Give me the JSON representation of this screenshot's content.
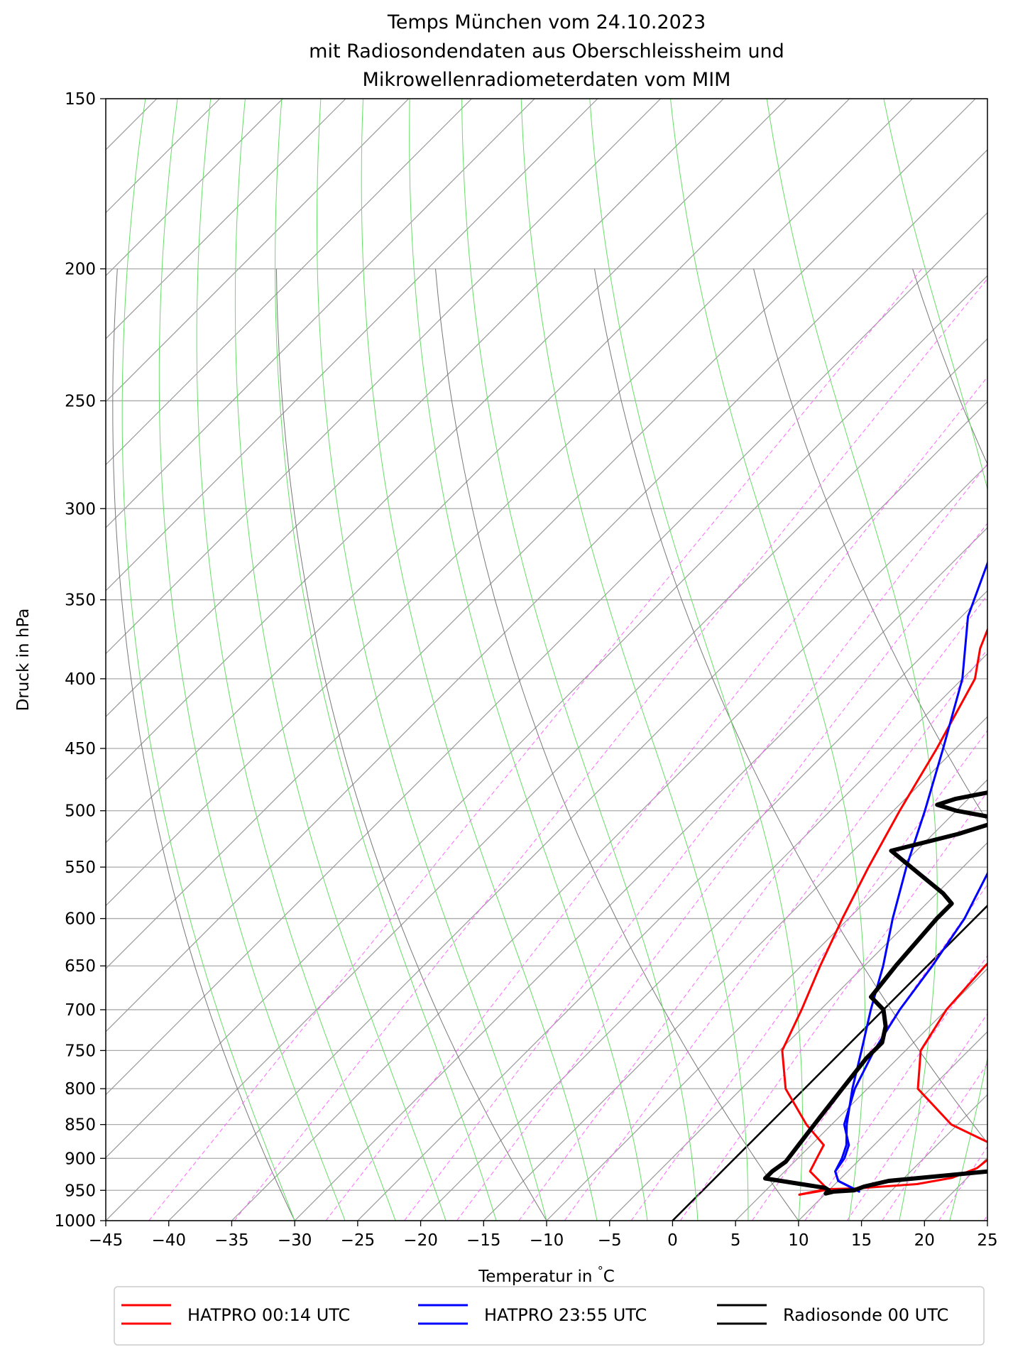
{
  "chart_data": {
    "type": "line",
    "title": [
      "Temps München vom 24.10.2023",
      "mit Radiosondendaten aus Oberschleissheim und",
      "Mikrowellenradiometerdaten vom MIM"
    ],
    "xlabel": "Temperatur in $^\\circ$C",
    "xlabel_text": "Temperatur in",
    "xlabel_unit": "C",
    "xlabel_degree": "°",
    "ylabel": "Druck in hPa",
    "xlim": [
      -45,
      25
    ],
    "ylim": [
      1000,
      150
    ],
    "yscale": "log",
    "xticks": [
      -45,
      -40,
      -35,
      -30,
      -25,
      -20,
      -15,
      -10,
      -5,
      0,
      5,
      10,
      15,
      20,
      25
    ],
    "xtick_labels": [
      "−45",
      "−40",
      "−35",
      "−30",
      "−25",
      "−20",
      "−15",
      "−10",
      "−5",
      "0",
      "5",
      "10",
      "15",
      "20",
      "25"
    ],
    "yticks": [
      1000,
      950,
      900,
      850,
      800,
      750,
      700,
      650,
      600,
      550,
      500,
      450,
      400,
      350,
      300,
      250,
      200,
      150
    ],
    "ytick_labels": [
      "1000",
      "950",
      "900",
      "850",
      "800",
      "750",
      "700",
      "650",
      "600",
      "550",
      "500",
      "450",
      "400",
      "350",
      "300",
      "250",
      "200",
      "150"
    ],
    "grid": true,
    "skew_t": true,
    "series": [
      {
        "name": "HATPRO 00:14 UTC",
        "color": "#ff0000",
        "points": [
          [
            23.2,
            245
          ],
          [
            21.0,
            270
          ],
          [
            17.0,
            310
          ],
          [
            12.0,
            360
          ],
          [
            8.0,
            400
          ],
          [
            5.6,
            450
          ],
          [
            4.0,
            500
          ],
          [
            4.5,
            550
          ],
          [
            4.8,
            600
          ],
          [
            4.6,
            650
          ],
          [
            5.0,
            700
          ],
          [
            6.2,
            750
          ],
          [
            9.0,
            800
          ],
          [
            14.5,
            850
          ],
          [
            19.5,
            880
          ],
          [
            20.2,
            900
          ],
          [
            20.0,
            915
          ],
          [
            18.8,
            930
          ],
          [
            16.5,
            940
          ],
          [
            12.0,
            947
          ],
          [
            10.0,
            948
          ],
          [
            9.2,
            952
          ],
          [
            8.0,
            957
          ]
        ]
      },
      {
        "name": "",
        "color": "#ff0000",
        "points": [
          [
            -31.3,
            247
          ],
          [
            -29.0,
            280
          ],
          [
            -25.0,
            330
          ],
          [
            -21.0,
            380
          ],
          [
            -19.0,
            400
          ],
          [
            -16.5,
            450
          ],
          [
            -14.5,
            500
          ],
          [
            -12.5,
            550
          ],
          [
            -10.5,
            600
          ],
          [
            -8.5,
            650
          ],
          [
            -6.5,
            700
          ],
          [
            -4.8,
            750
          ],
          [
            -1.5,
            800
          ],
          [
            3.0,
            850
          ],
          [
            6.0,
            880
          ],
          [
            6.5,
            900
          ],
          [
            7.0,
            920
          ],
          [
            9.5,
            945
          ],
          [
            9.3,
            950
          ],
          [
            8.0,
            957
          ]
        ]
      },
      {
        "name": "HATPRO 23:55 UTC",
        "color": "#0000ff",
        "points": [
          [
            -23.5,
            245
          ],
          [
            -23.7,
            260
          ],
          [
            -23.3,
            280
          ],
          [
            -20.0,
            320
          ],
          [
            -16.0,
            360
          ],
          [
            -12.0,
            400
          ],
          [
            -8.5,
            450
          ],
          [
            -5.5,
            500
          ],
          [
            -2.8,
            550
          ],
          [
            -0.8,
            600
          ],
          [
            0.4,
            650
          ],
          [
            1.3,
            700
          ],
          [
            2.5,
            750
          ],
          [
            4.0,
            800
          ],
          [
            6.0,
            850
          ],
          [
            8.0,
            880
          ],
          [
            8.7,
            900
          ],
          [
            9.0,
            920
          ],
          [
            10.0,
            935
          ],
          [
            11.5,
            945
          ],
          [
            12.5,
            952
          ]
        ]
      },
      {
        "name": "",
        "color": "#0000ff",
        "points": [
          [
            -34.0,
            247
          ],
          [
            -31.0,
            285
          ],
          [
            -28.0,
            320
          ],
          [
            -24.5,
            360
          ],
          [
            -20.0,
            400
          ],
          [
            -16.0,
            450
          ],
          [
            -12.5,
            500
          ],
          [
            -9.5,
            550
          ],
          [
            -6.5,
            600
          ],
          [
            -3.5,
            650
          ],
          [
            -1.0,
            700
          ],
          [
            1.5,
            750
          ],
          [
            3.8,
            800
          ],
          [
            6.2,
            850
          ],
          [
            7.8,
            880
          ],
          [
            8.5,
            900
          ],
          [
            9.0,
            920
          ],
          [
            10.0,
            935
          ],
          [
            12.5,
            952
          ]
        ]
      },
      {
        "name": "Radiosonde 00 UTC",
        "color": "#000000",
        "points": [
          [
            -18.0,
            150
          ],
          [
            -22.0,
            200
          ],
          [
            -26.0,
            212
          ],
          [
            -27.0,
            225
          ],
          [
            -27.5,
            232
          ],
          [
            -24.5,
            265
          ],
          [
            -20.5,
            300
          ],
          [
            -16.5,
            335
          ],
          [
            -11.5,
            400
          ],
          [
            -6.0,
            460
          ],
          [
            -5.0,
            465
          ],
          [
            -3.0,
            490
          ],
          [
            -1.0,
            510
          ],
          [
            0.8,
            530
          ],
          [
            1.2,
            540
          ],
          [
            2.0,
            575
          ],
          [
            6.0,
            625
          ],
          [
            9.0,
            675
          ],
          [
            9.3,
            685
          ],
          [
            9.5,
            710
          ],
          [
            13.0,
            740
          ],
          [
            16.5,
            790
          ],
          [
            18.5,
            840
          ],
          [
            20.7,
            890
          ],
          [
            21.0,
            905
          ],
          [
            21.2,
            920
          ],
          [
            14.0,
            935
          ],
          [
            12.5,
            944
          ],
          [
            12.0,
            950
          ],
          [
            10.5,
            952
          ],
          [
            10.0,
            955
          ],
          [
            10.0,
            950
          ],
          [
            9.5,
            946
          ],
          [
            4.0,
            931
          ],
          [
            4.0,
            920
          ],
          [
            4.3,
            905
          ],
          [
            4.0,
            880
          ],
          [
            3.5,
            840
          ],
          [
            3.0,
            800
          ],
          [
            2.5,
            760
          ],
          [
            2.5,
            740
          ],
          [
            1.5,
            720
          ],
          [
            0.0,
            700
          ],
          [
            -2.0,
            685
          ],
          [
            -2.5,
            650
          ],
          [
            -3.0,
            600
          ],
          [
            -3.0,
            585
          ],
          [
            -4.5,
            575
          ],
          [
            -12.0,
            535
          ],
          [
            -8.0,
            520
          ],
          [
            -6.0,
            510
          ],
          [
            -7.0,
            505
          ],
          [
            -10.0,
            500
          ],
          [
            -12.0,
            495
          ],
          [
            -11.0,
            490
          ],
          [
            -5.0,
            475
          ],
          [
            -4.5,
            465
          ],
          [
            -6.0,
            450
          ],
          [
            -10.0,
            410
          ],
          [
            -16.5,
            340
          ],
          [
            -17.0,
            325
          ],
          [
            -20.0,
            313
          ],
          [
            -23.0,
            300
          ],
          [
            -25.5,
            280
          ],
          [
            -27.0,
            250
          ],
          [
            -29.0,
            240
          ],
          [
            -30.5,
            230
          ],
          [
            -32.3,
            220
          ],
          [
            -32.5,
            215
          ],
          [
            -31.0,
            212
          ],
          [
            -33.0,
            206
          ],
          [
            -36.0,
            196
          ],
          [
            -39.0,
            188
          ],
          [
            -38.0,
            176
          ],
          [
            -37.5,
            170
          ]
        ]
      }
    ],
    "legend": {
      "placement": "bottom",
      "entries": [
        {
          "label": "HATPRO 00:14 UTC",
          "color": "#ff0000"
        },
        {
          "label": "HATPRO 23:55 UTC",
          "color": "#0000ff"
        },
        {
          "label": "Radiosonde 00 UTC",
          "color": "#000000"
        }
      ]
    },
    "reference_lines": {
      "isotherm_zero": true,
      "isotherm_color": "#000000",
      "isotherm_grid_color": "#999999",
      "dry_adiabat_color": "#777777",
      "moist_adiabat_color": "#66dd66",
      "mixing_ratio_color": "#ff66ff"
    }
  }
}
